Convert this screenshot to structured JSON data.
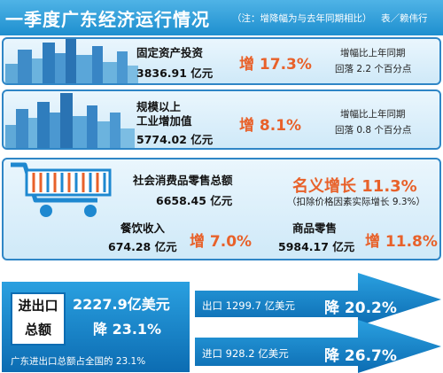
{
  "header": {
    "title": "一季度广东经济运行情况",
    "note": "（注：增降幅为与去年同期相比）",
    "credit": "表／赖伟行"
  },
  "fixed_assets": {
    "label": "固定资产投资",
    "value": "3836.91 亿元",
    "growth": "增 17.3%",
    "remark_line1": "增幅比上年同期",
    "remark_line2": "回落 2.2 个百分点"
  },
  "industry": {
    "label_line1": "规模以上",
    "label_line2": "工业增加值",
    "value": "5774.02 亿元",
    "growth": "增 8.1%",
    "remark_line1": "增幅比上年同期",
    "remark_line2": "回落 0.8 个百分点"
  },
  "retail": {
    "label": "社会消费品零售总额",
    "value": "6658.45 亿元",
    "growth": "名义增长 11.3%",
    "real_note": "（扣除价格因素实际增长 9.3%）",
    "catering_label": "餐饮收入",
    "catering_value": "674.28 亿元",
    "catering_growth": "增 7.0%",
    "goods_label": "商品零售",
    "goods_value": "5984.17 亿元",
    "goods_growth": "增 11.8%"
  },
  "trade": {
    "label_line1": "进出口",
    "label_line2": "总额",
    "total": "2227.9亿美元",
    "change": "降 23.1%",
    "share_note": "广东进出口总额占全国的 23.1%",
    "export_text": "出口 1299.7 亿美元",
    "export_change": "降 20.2%",
    "import_text": "进口 928.2 亿美元",
    "import_change": "降 26.7%"
  },
  "colors": {
    "header_blue": "#1e8fcf",
    "accent_orange": "#e8612a",
    "panel_border": "#2f86c6",
    "trade_blue": "#0c6cb2"
  },
  "icons": {
    "skyline1": "city-skyline-icon",
    "skyline2": "factory-skyline-icon",
    "cart": "shopping-cart-icon"
  }
}
